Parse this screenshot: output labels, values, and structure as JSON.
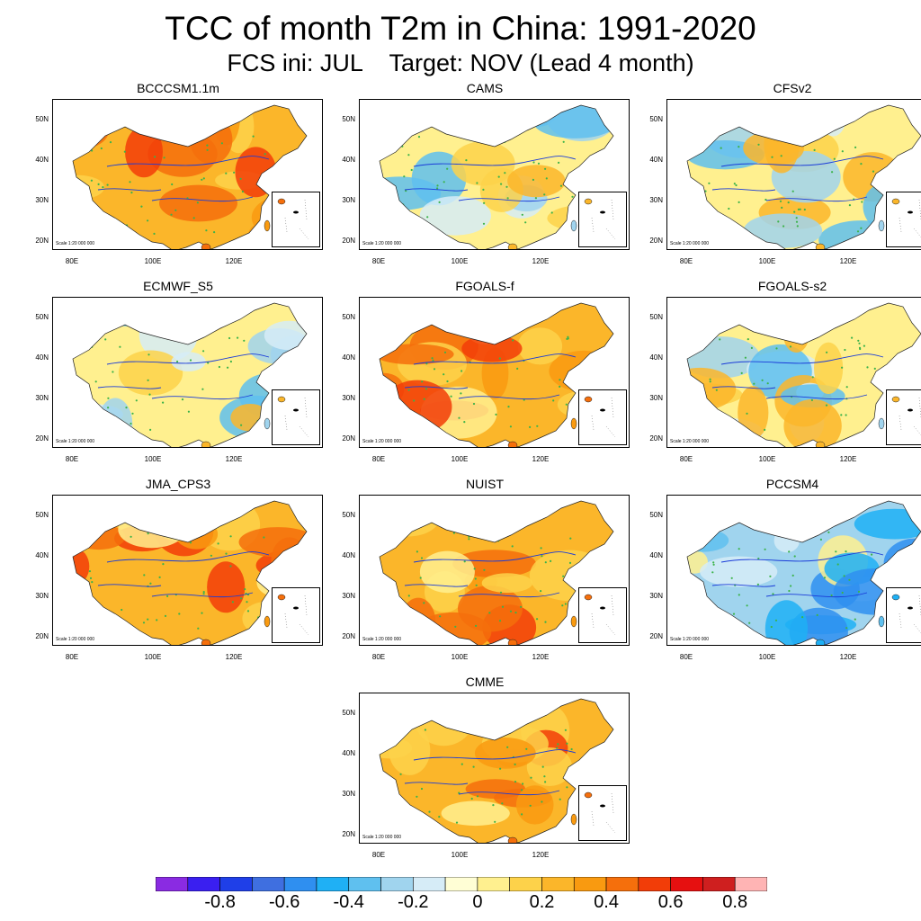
{
  "title": "TCC of month T2m in China: 1991-2020",
  "subtitle": "FCS ini: JUL    Target: NOV (Lead 4 month)",
  "panels": [
    {
      "name": "BCCCSM1.1m",
      "tone": "warm"
    },
    {
      "name": "CAMS",
      "tone": "mixed"
    },
    {
      "name": "CFSv2",
      "tone": "mixed"
    },
    {
      "name": "ECMWF_S5",
      "tone": "mixed"
    },
    {
      "name": "FGOALS-f",
      "tone": "warm"
    },
    {
      "name": "FGOALS-s2",
      "tone": "mixed"
    },
    {
      "name": "JMA_CPS3",
      "tone": "warm"
    },
    {
      "name": "NUIST",
      "tone": "warm"
    },
    {
      "name": "PCCSM4",
      "tone": "cool"
    },
    {
      "name": "CMME",
      "tone": "warm"
    }
  ],
  "axes": {
    "lat_ticks": [
      "50N",
      "40N",
      "30N",
      "20N"
    ],
    "lon_ticks": [
      "80E",
      "100E",
      "120E"
    ]
  },
  "scale_text": "Scale 1:20 000 000",
  "colorbar": {
    "colors": [
      "#8a2be2",
      "#3a1ff0",
      "#1f3fe8",
      "#3f6fe0",
      "#2f8ff0",
      "#1fb0f5",
      "#5fc0ef",
      "#a0d4ee",
      "#d6ecf7",
      "#fffed5",
      "#fff08f",
      "#fdd24a",
      "#fbb62a",
      "#f99a10",
      "#f56f0c",
      "#f23d08",
      "#e61010",
      "#cf1f1f",
      "#ffb4b4"
    ],
    "labels": [
      "-0.8",
      "-0.6",
      "-0.4",
      "-0.2",
      "0",
      "0.2",
      "0.4",
      "0.6",
      "0.8"
    ]
  }
}
